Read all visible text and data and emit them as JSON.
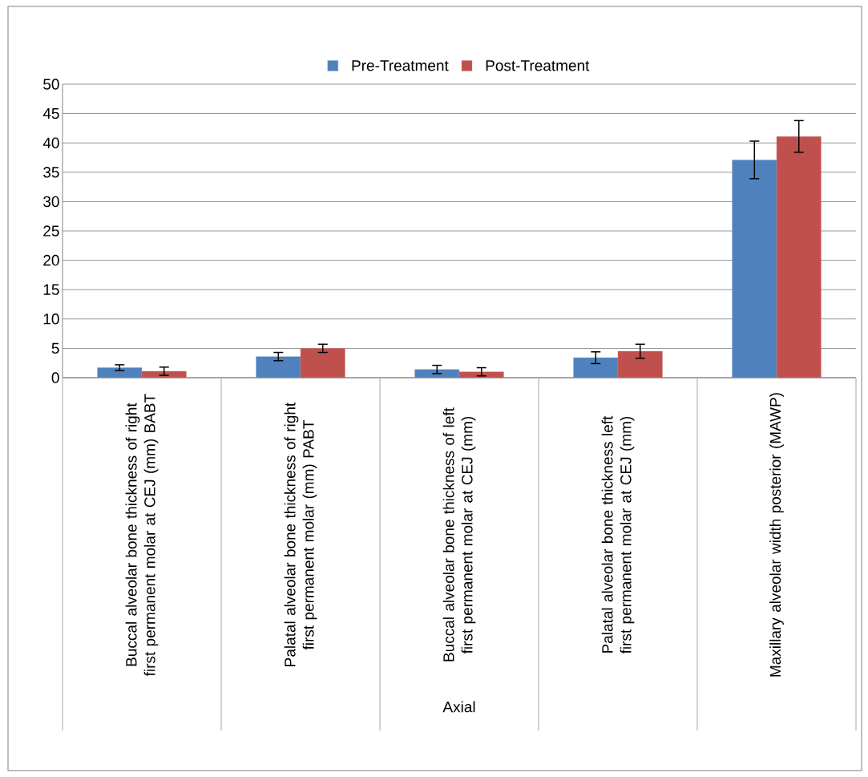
{
  "chart_data": {
    "type": "bar",
    "xlabel": "Axial",
    "categories": [
      "Buccal alveolar bone thickness of right first permanent molar at CEJ (mm) BABT",
      "Palatal alveolar bone thickness of right first permanent molar (mm) PABT",
      "Buccal alveolar bone thickness of left first permanent molar at CEJ (mm)",
      "Palatal alveolar bone thickness left first permanent molar at CEJ (mm)",
      "Maxillary alveolar width posterior (MAWP)"
    ],
    "series": [
      {
        "name": "Pre-Treatment",
        "color": "#4f81bd",
        "values": [
          1.7,
          3.6,
          1.4,
          3.4,
          37.1
        ],
        "errors": [
          0.5,
          0.7,
          0.7,
          1.0,
          3.2
        ]
      },
      {
        "name": "Post-Treatment",
        "color": "#c0504d",
        "values": [
          1.1,
          5.0,
          1.0,
          4.5,
          41.1
        ],
        "errors": [
          0.7,
          0.7,
          0.7,
          1.2,
          2.7
        ]
      }
    ],
    "ylim": [
      0,
      50
    ],
    "yticks": [
      0,
      5,
      10,
      15,
      20,
      25,
      30,
      35,
      40,
      45,
      50
    ],
    "grid": "y",
    "legend": "top"
  }
}
